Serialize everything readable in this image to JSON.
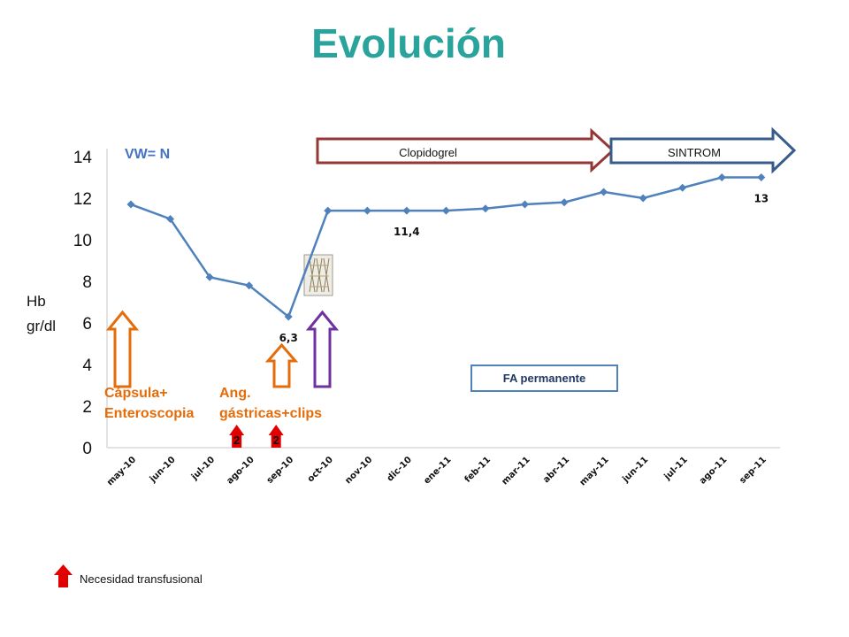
{
  "slide": {
    "title": "Evolución"
  },
  "chart_data": {
    "type": "line",
    "title": "Evolución",
    "ylabel": "Hb\ngr/dl",
    "ylim": [
      0,
      14
    ],
    "yticks": [
      0,
      2,
      4,
      6,
      8,
      10,
      12,
      14
    ],
    "grid": false,
    "categories": [
      "may-10",
      "jun-10",
      "jul-10",
      "ago-10",
      "sep-10",
      "oct-10",
      "nov-10",
      "dic-10",
      "ene-11",
      "feb-11",
      "mar-11",
      "abr-11",
      "may-11",
      "jun-11",
      "jul-11",
      "ago-11",
      "sep-11"
    ],
    "series": [
      {
        "values": [
          11.7,
          11.0,
          8.2,
          7.8,
          6.3,
          11.4,
          11.4,
          11.4,
          11.4,
          11.5,
          11.7,
          11.8,
          12.3,
          12.0,
          12.5,
          13.0,
          13.0
        ]
      }
    ],
    "data_labels": [
      {
        "index": 4,
        "text": "6,3"
      },
      {
        "index": 7,
        "text": "11,4"
      },
      {
        "index": 16,
        "text": "13"
      }
    ],
    "annotations": {
      "vw": "VW= N",
      "capsula": [
        "Cápsula+",
        "Enteroscopia"
      ],
      "ang": [
        "Ang.",
        "gástricas+clips"
      ],
      "fa": "FA permanente",
      "clopidogrel": "Clopidogrel",
      "sintrom": "SINTROM",
      "transfusion_counts": [
        {
          "index": 3,
          "text": "2"
        },
        {
          "index": 4,
          "text": "2"
        }
      ],
      "legend": "Necesidad transfusional"
    },
    "colors": {
      "line": "#4f81bd",
      "title": "#2aa39d",
      "orange": "#e46c0a",
      "purple": "#7030a0",
      "red": "#e00000",
      "clopidogrel": "#953735",
      "sintrom": "#385d8a",
      "vw": "#4472c4"
    }
  }
}
